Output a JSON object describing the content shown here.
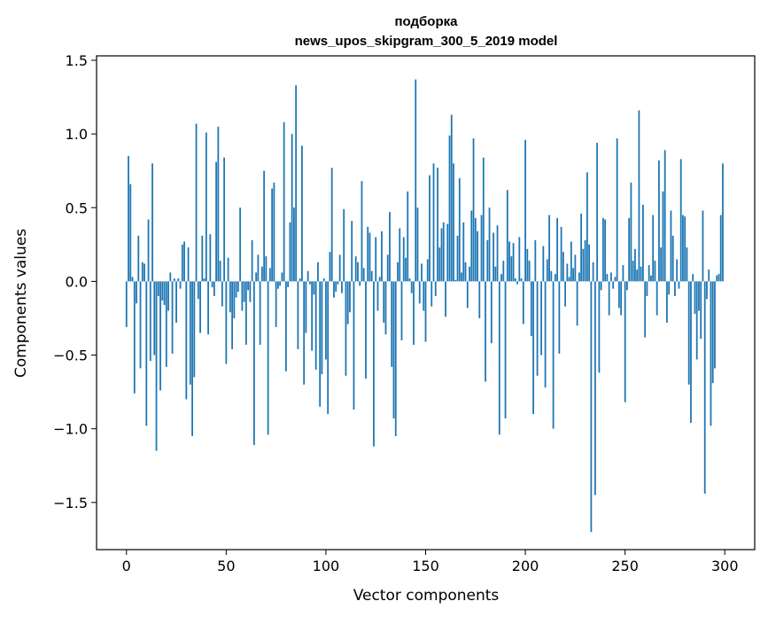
{
  "chart_data": {
    "type": "bar",
    "title": [
      "подборка",
      "news_upos_skipgram_300_5_2019 model"
    ],
    "xlabel": "Vector components",
    "ylabel": "Components values",
    "xlim": [
      -15,
      315
    ],
    "ylim": [
      -1.82,
      1.53
    ],
    "xticks": [
      0,
      50,
      100,
      150,
      200,
      250,
      300
    ],
    "xtick_labels": [
      "0",
      "50",
      "100",
      "150",
      "200",
      "250",
      "300"
    ],
    "yticks": [
      -1.5,
      -1.0,
      -0.5,
      0.0,
      0.5,
      1.0,
      1.5
    ],
    "ytick_labels": [
      "−1.5",
      "−1.0",
      "−0.5",
      "0.0",
      "0.5",
      "1.0",
      "1.5"
    ],
    "bar_color": "#1f77b4",
    "grid": false,
    "x": "0..299 (component index)",
    "values": [
      -0.31,
      0.85,
      0.66,
      0.03,
      -0.76,
      -0.15,
      0.31,
      -0.59,
      0.13,
      0.12,
      -0.98,
      0.42,
      -0.54,
      0.8,
      -0.5,
      -1.15,
      -0.1,
      -0.74,
      -0.13,
      -0.16,
      -0.58,
      -0.2,
      0.06,
      -0.49,
      0.02,
      -0.28,
      0.02,
      -0.05,
      0.25,
      0.27,
      -0.8,
      0.23,
      -0.7,
      -1.05,
      -0.65,
      1.07,
      -0.12,
      -0.35,
      0.31,
      0.02,
      1.01,
      -0.36,
      0.32,
      -0.04,
      -0.1,
      0.81,
      1.05,
      0.14,
      -0.17,
      0.84,
      -0.56,
      0.16,
      -0.21,
      -0.46,
      -0.25,
      -0.11,
      -0.07,
      0.5,
      -0.2,
      -0.14,
      -0.43,
      -0.06,
      -0.14,
      0.28,
      -1.11,
      0.06,
      0.18,
      -0.43,
      0.1,
      0.75,
      0.17,
      -1.04,
      0.09,
      0.63,
      0.67,
      -0.31,
      -0.05,
      -0.03,
      0.06,
      1.08,
      -0.61,
      -0.04,
      0.4,
      1.0,
      0.5,
      1.33,
      -0.46,
      0.02,
      0.92,
      -0.7,
      -0.35,
      0.07,
      -0.02,
      -0.47,
      -0.09,
      -0.6,
      0.13,
      -0.85,
      -0.63,
      0.02,
      -0.53,
      -0.9,
      0.2,
      0.77,
      -0.11,
      -0.07,
      -0.02,
      0.18,
      -0.08,
      0.49,
      -0.64,
      -0.29,
      -0.21,
      0.41,
      -0.87,
      0.17,
      0.13,
      -0.03,
      0.68,
      0.09,
      -0.66,
      0.37,
      0.33,
      0.07,
      -1.12,
      0.3,
      -0.2,
      0.03,
      0.34,
      -0.28,
      -0.36,
      0.18,
      0.47,
      -0.58,
      -0.93,
      -1.05,
      0.13,
      0.36,
      -0.4,
      0.3,
      0.16,
      0.61,
      0.02,
      -0.08,
      -0.43,
      1.37,
      0.5,
      -0.15,
      0.12,
      -0.2,
      -0.41,
      0.15,
      0.72,
      -0.17,
      0.8,
      -0.1,
      0.77,
      0.23,
      0.36,
      0.4,
      -0.24,
      0.39,
      0.99,
      1.13,
      0.8,
      0.01,
      0.31,
      0.7,
      0.06,
      0.4,
      0.13,
      -0.18,
      0.1,
      0.48,
      0.97,
      0.43,
      0.34,
      -0.25,
      0.45,
      0.84,
      -0.68,
      0.28,
      0.5,
      -0.42,
      0.33,
      0.1,
      0.38,
      -1.04,
      0.05,
      0.14,
      -0.93,
      0.62,
      0.27,
      0.17,
      0.26,
      0.02,
      -0.02,
      0.3,
      0.02,
      -0.29,
      0.96,
      0.22,
      0.14,
      -0.37,
      -0.9,
      0.28,
      -0.64,
      0.0,
      -0.5,
      0.24,
      -0.72,
      0.15,
      0.45,
      0.07,
      -1.0,
      0.05,
      0.43,
      -0.49,
      0.37,
      0.2,
      -0.17,
      0.12,
      0.03,
      0.27,
      0.09,
      0.18,
      -0.3,
      0.06,
      0.46,
      0.22,
      0.28,
      0.74,
      0.25,
      -1.7,
      0.13,
      -1.45,
      0.94,
      -0.62,
      -0.06,
      0.43,
      0.42,
      0.05,
      -0.23,
      0.06,
      -0.05,
      0.03,
      0.97,
      -0.18,
      -0.23,
      0.11,
      -0.82,
      -0.06,
      0.43,
      0.67,
      0.14,
      0.22,
      0.08,
      1.16,
      0.1,
      0.52,
      -0.38,
      -0.1,
      0.11,
      0.04,
      0.45,
      0.14,
      -0.23,
      0.82,
      0.23,
      0.61,
      0.89,
      -0.28,
      -0.09,
      0.48,
      0.31,
      -0.1,
      0.15,
      -0.05,
      0.83,
      0.45,
      0.44,
      0.23,
      -0.7,
      -0.96,
      0.05,
      -0.22,
      -0.53,
      -0.2,
      -0.39,
      0.48,
      -1.44,
      -0.12,
      0.08,
      -0.98,
      -0.69,
      -0.59,
      0.04,
      0.05,
      0.45,
      0.8
    ]
  }
}
